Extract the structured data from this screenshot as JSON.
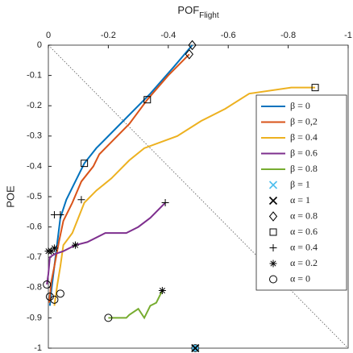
{
  "chart_data": {
    "type": "line",
    "xlabel": "POF",
    "xlabel_sub": "Flight",
    "ylabel": "POE",
    "xlim": [
      0,
      -1
    ],
    "ylim": [
      -1,
      0
    ],
    "xticks": [
      0,
      -0.2,
      -0.4,
      -0.6,
      -0.8,
      -1
    ],
    "yticks": [
      0,
      -0.1,
      -0.2,
      -0.3,
      -0.4,
      -0.5,
      -0.6,
      -0.7,
      -0.8,
      -0.9,
      -1
    ],
    "diagonal": true,
    "legend": "right",
    "series": [
      {
        "name": "β = 0",
        "color": "#0072bd",
        "mark": "line",
        "x": [
          -0.48,
          -0.42,
          -0.34,
          -0.24,
          -0.16,
          -0.12,
          -0.09,
          -0.06,
          -0.04,
          -0.03,
          -0.02,
          -0.01,
          -0.005
        ],
        "values": [
          0,
          -0.07,
          -0.16,
          -0.26,
          -0.34,
          -0.39,
          -0.45,
          -0.51,
          -0.57,
          -0.65,
          -0.73,
          -0.81,
          -0.86
        ]
      },
      {
        "name": "β = 0,2",
        "color": "#d95319",
        "mark": "line",
        "x": [
          -0.47,
          -0.4,
          -0.33,
          -0.27,
          -0.21,
          -0.17,
          -0.15,
          -0.11,
          -0.08,
          -0.05,
          -0.035,
          -0.02,
          -0.01,
          -0.003
        ],
        "values": [
          -0.03,
          -0.1,
          -0.18,
          -0.26,
          -0.32,
          -0.36,
          -0.4,
          -0.45,
          -0.52,
          -0.58,
          -0.65,
          -0.73,
          -0.78,
          -0.85
        ]
      },
      {
        "name": "β = 0.4",
        "color": "#edb120",
        "mark": "line",
        "x": [
          -0.89,
          -0.81,
          -0.67,
          -0.59,
          -0.51,
          -0.43,
          -0.32,
          -0.27,
          -0.21,
          -0.16,
          -0.12,
          -0.1,
          -0.08,
          -0.05,
          -0.04,
          -0.03,
          -0.02
        ],
        "values": [
          -0.14,
          -0.14,
          -0.16,
          -0.21,
          -0.25,
          -0.3,
          -0.34,
          -0.38,
          -0.44,
          -0.48,
          -0.52,
          -0.57,
          -0.62,
          -0.66,
          -0.73,
          -0.79,
          -0.86
        ]
      },
      {
        "name": "β = 0.6",
        "color": "#7e2f8e",
        "mark": "line",
        "x": [
          -0.39,
          -0.34,
          -0.3,
          -0.26,
          -0.19,
          -0.13,
          -0.09,
          -0.05,
          -0.02,
          -0.005,
          0,
          0.005
        ],
        "values": [
          -0.52,
          -0.57,
          -0.6,
          -0.62,
          -0.62,
          -0.65,
          -0.66,
          -0.68,
          -0.69,
          -0.7,
          -0.755,
          -0.79
        ]
      },
      {
        "name": "β = 0.8",
        "color": "#77ac30",
        "mark": "line",
        "x": [
          -0.38,
          -0.36,
          -0.34,
          -0.32,
          -0.3,
          -0.27,
          -0.26,
          -0.2
        ],
        "values": [
          -0.81,
          -0.85,
          -0.86,
          -0.9,
          -0.87,
          -0.89,
          -0.9,
          -0.9
        ]
      },
      {
        "name": "β = 1",
        "color": "#4dbeee",
        "mark": "x",
        "plot_mark": "circle",
        "x": [
          -0.49
        ],
        "values": [
          -1
        ]
      },
      {
        "name": "α = 1",
        "color": "#000000",
        "mark": "x",
        "x": [
          -0.49
        ],
        "values": [
          -1
        ]
      },
      {
        "name": "α = 0.8",
        "color": "#000000",
        "mark": "diamond",
        "x": [
          -0.48,
          -0.47
        ],
        "values": [
          0,
          -0.03
        ]
      },
      {
        "name": "α = 0.6",
        "color": "#000000",
        "mark": "square",
        "x": [
          -0.12,
          -0.33,
          -0.89
        ],
        "values": [
          -0.39,
          -0.18,
          -0.14
        ]
      },
      {
        "name": "α = 0.4",
        "color": "#000000",
        "mark": "plus",
        "x": [
          -0.02,
          -0.04,
          -0.11,
          -0.39
        ],
        "values": [
          -0.56,
          -0.56,
          -0.51,
          -0.52
        ]
      },
      {
        "name": "α = 0.2",
        "color": "#000000",
        "mark": "star",
        "x": [
          0,
          -0.01,
          -0.02,
          -0.09,
          -0.38
        ],
        "values": [
          -0.68,
          -0.68,
          -0.67,
          -0.66,
          -0.81
        ]
      },
      {
        "name": "α = 0",
        "color": "#000000",
        "mark": "circle",
        "x": [
          0.005,
          -0.005,
          -0.02,
          -0.04,
          -0.2
        ],
        "values": [
          -0.79,
          -0.83,
          -0.84,
          -0.82,
          -0.9
        ]
      }
    ]
  }
}
